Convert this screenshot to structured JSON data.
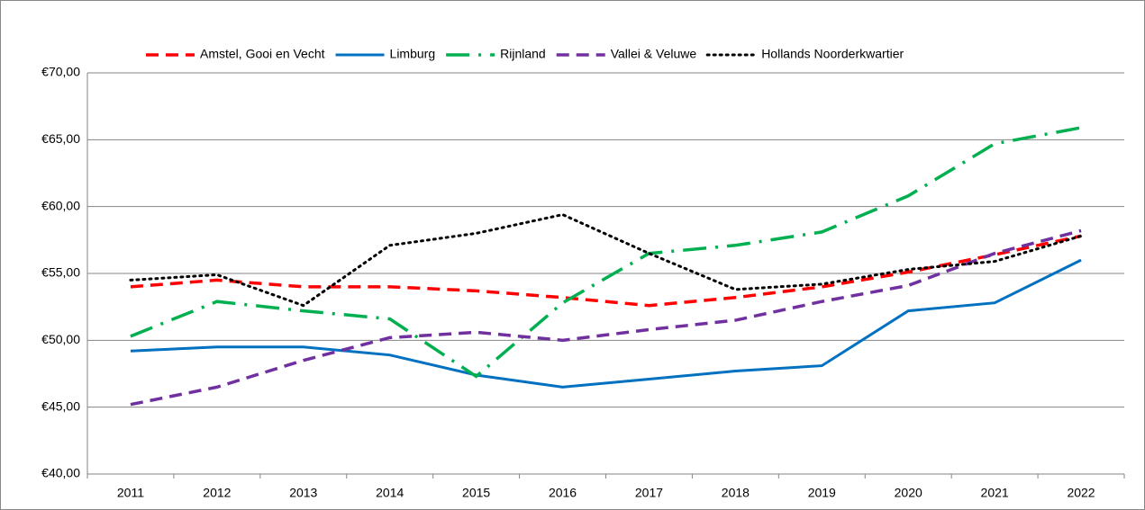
{
  "chart_data": {
    "type": "line",
    "categories": [
      "2011",
      "2012",
      "2013",
      "2014",
      "2015",
      "2016",
      "2017",
      "2018",
      "2019",
      "2020",
      "2021",
      "2022"
    ],
    "series": [
      {
        "name": "Amstel, Gooi en Vecht",
        "color": "#ff0000",
        "style": "dashed",
        "values": [
          54.0,
          54.5,
          54.0,
          54.0,
          53.7,
          53.2,
          52.6,
          53.2,
          54.0,
          55.1,
          56.4,
          57.8
        ]
      },
      {
        "name": "Limburg",
        "color": "#0070c0",
        "style": "solid",
        "values": [
          49.2,
          49.5,
          49.5,
          48.9,
          47.4,
          46.5,
          47.1,
          47.7,
          48.1,
          52.2,
          52.8,
          56.0
        ]
      },
      {
        "name": "Rijnland",
        "color": "#00b050",
        "style": "dashdot",
        "values": [
          50.3,
          52.9,
          52.2,
          51.6,
          47.3,
          52.8,
          56.5,
          57.1,
          58.1,
          60.8,
          64.7,
          65.9
        ]
      },
      {
        "name": "Vallei & Veluwe",
        "color": "#7030a0",
        "style": "dashed",
        "values": [
          45.2,
          46.5,
          48.5,
          50.2,
          50.6,
          50.0,
          50.8,
          51.5,
          52.9,
          54.1,
          56.5,
          58.2
        ]
      },
      {
        "name": "Hollands Noorderkwartier",
        "color": "#000000",
        "style": "dotted",
        "values": [
          54.5,
          54.9,
          52.6,
          57.1,
          58.0,
          59.4,
          56.5,
          53.8,
          54.2,
          55.3,
          55.9,
          57.8
        ]
      }
    ],
    "ylim": [
      40,
      70
    ],
    "yticks": [
      {
        "value": 40,
        "label": "€40,00"
      },
      {
        "value": 45,
        "label": "€45,00"
      },
      {
        "value": 50,
        "label": "€50,00"
      },
      {
        "value": 55,
        "label": "€55,00"
      },
      {
        "value": 60,
        "label": "€60,00"
      },
      {
        "value": 65,
        "label": "€65,00"
      },
      {
        "value": 70,
        "label": "€70,00"
      }
    ],
    "grid": true,
    "legend": "top"
  }
}
